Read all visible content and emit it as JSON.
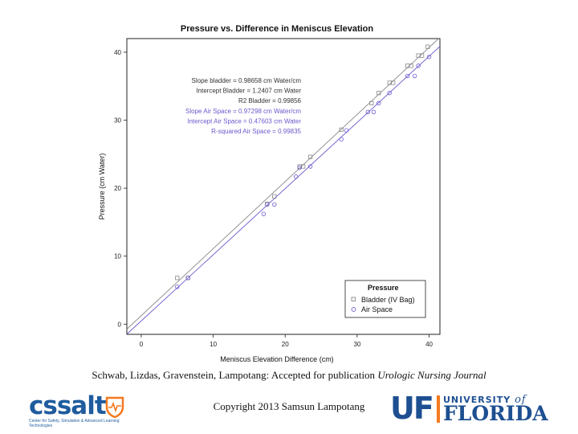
{
  "chart_data": {
    "type": "scatter",
    "title": "Pressure vs. Difference in Meniscus Elevation",
    "xlabel": "Meniscus Elevation Difference (cm)",
    "ylabel": "Pressure (cm Water)",
    "xlim": [
      -2,
      41.5
    ],
    "ylim": [
      -1.5,
      42
    ],
    "xticks": [
      0,
      10,
      20,
      30,
      40
    ],
    "yticks": [
      0,
      10,
      20,
      30,
      40
    ],
    "legend": {
      "title": "Pressure",
      "position": "bottom-right",
      "entries": [
        "Bladder (IV Bag)",
        "Air Space"
      ]
    },
    "series": [
      {
        "name": "Bladder (IV Bag)",
        "marker": "square",
        "color": "#8a8a8a",
        "fit": {
          "slope": 0.98658,
          "intercept": 1.2407
        },
        "x": [
          5.0,
          6.5,
          17.5,
          18.5,
          22.0,
          22.5,
          23.5,
          27.8,
          32.0,
          33.0,
          34.5,
          35.0,
          37.0,
          37.5,
          38.5,
          39.0,
          39.8
        ],
        "y": [
          6.8,
          6.8,
          17.7,
          18.8,
          23.2,
          23.2,
          24.6,
          28.6,
          32.5,
          34.0,
          35.5,
          35.5,
          38.0,
          38.0,
          39.5,
          39.5,
          40.8
        ]
      },
      {
        "name": "Air Space",
        "marker": "circle",
        "color": "#6a5acd",
        "fit": {
          "slope": 0.97298,
          "intercept": 0.47603
        },
        "x": [
          5.0,
          6.5,
          17.0,
          17.5,
          18.5,
          21.5,
          22.0,
          23.5,
          27.8,
          28.5,
          31.5,
          32.3,
          33.0,
          34.5,
          37.0,
          38.0,
          38.5,
          40.0
        ],
        "y": [
          5.5,
          6.8,
          16.2,
          17.6,
          17.6,
          21.7,
          23.0,
          23.2,
          27.2,
          28.5,
          31.2,
          31.2,
          32.5,
          34.0,
          36.5,
          36.5,
          38.0,
          39.3
        ]
      }
    ],
    "annotations": [
      {
        "text": "Slope bladder = 0.98658  cm Water/cm",
        "color": "#333333"
      },
      {
        "text": "Intercept Bladder =  1.2407  cm Water",
        "color": "#333333"
      },
      {
        "text": "R2 Bladder =  0.99856",
        "color": "#333333"
      },
      {
        "text": "Slope Air Space = 0.97298  cm Water/cm",
        "color": "#6a5acd"
      },
      {
        "text": "Intercept Air Space = 0.47603  cm Water",
        "color": "#6a5acd"
      },
      {
        "text": "R-squared Air Space =  0.99835",
        "color": "#6a5acd"
      }
    ]
  },
  "caption": {
    "authors": "Schwab, Lizdas, Gravenstein, Lampotang: Accepted for publication ",
    "journal": "Urologic Nursing Journal"
  },
  "copyright": "Copyright 2013 Samsun Lampotang",
  "logos": {
    "cssalt_name": "cssalt",
    "cssalt_tagline": "Center for Safety, Simulation & Advanced Learning Technologies",
    "uf_mark": "UF",
    "uf_university": "UNIVERSITY",
    "uf_of": "of",
    "uf_florida": "FLORIDA"
  },
  "colors": {
    "bladder": "#8a8a8a",
    "air": "#6a5acd",
    "uf_blue": "#1d4f91",
    "uf_orange": "#f47a20"
  }
}
